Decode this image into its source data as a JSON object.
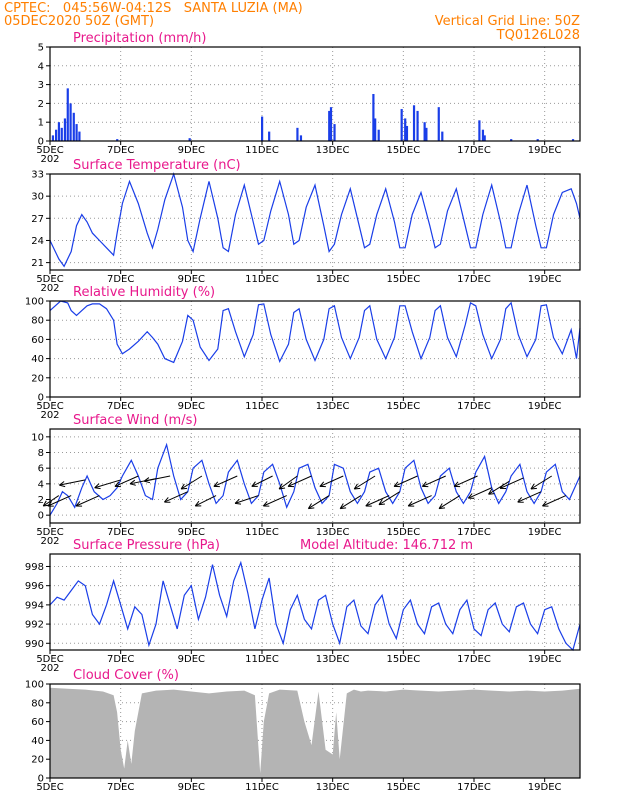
{
  "header": {
    "line1_left": "CPTEC:   045:56W-04:12S   SANTA LUZIA (MA)",
    "line2_left": "05DEC2020 50Z (GMT)",
    "line1_right": "Vertical Grid Line: 50Z",
    "line2_right": "TQ0126L028"
  },
  "colors": {
    "header": "#ff7f00",
    "panel_title": "#e8188c",
    "series": "#1a3ee8",
    "precip_bars": "#1a3ee8",
    "cloud_fill": "#b4b4b4",
    "wind_arrows": "#000000"
  },
  "x_axis": {
    "tick_labels": [
      "5DEC",
      "7DEC",
      "9DEC",
      "11DEC",
      "13DEC",
      "15DEC",
      "17DEC",
      "19DEC"
    ],
    "tick_days": [
      0,
      2,
      4,
      6,
      8,
      10,
      12,
      14
    ],
    "year_label": "202",
    "range_days": [
      0,
      15
    ]
  },
  "chart_data": [
    {
      "type": "bar",
      "title": "Precipitation (mm/h)",
      "ylim": [
        0,
        5
      ],
      "yticks": [
        0,
        1,
        2,
        3,
        4,
        5
      ],
      "grid": true,
      "x_units": "days since 05DEC2020",
      "x": [
        0.08,
        0.17,
        0.25,
        0.33,
        0.42,
        0.5,
        0.58,
        0.67,
        0.75,
        0.83,
        1.9,
        3.95,
        6.0,
        6.2,
        7.0,
        7.1,
        7.9,
        7.95,
        8.05,
        9.15,
        9.2,
        9.3,
        9.95,
        10.05,
        10.1,
        10.3,
        10.4,
        10.6,
        10.65,
        11.0,
        11.1,
        12.15,
        12.25,
        12.3,
        13.05,
        13.8,
        14.8
      ],
      "values": [
        0.3,
        0.6,
        1.0,
        0.7,
        1.2,
        2.8,
        2.0,
        1.5,
        0.9,
        0.5,
        0.1,
        0.15,
        1.3,
        0.5,
        0.7,
        0.3,
        1.6,
        1.8,
        0.9,
        2.5,
        1.2,
        0.6,
        1.7,
        1.2,
        0.8,
        1.9,
        1.6,
        1.0,
        0.7,
        1.8,
        0.5,
        1.1,
        0.6,
        0.3,
        0.1,
        0.1,
        0.1
      ]
    },
    {
      "type": "line",
      "title": "Surface Temperature (nC)",
      "ylim": [
        20,
        33
      ],
      "yticks": [
        21,
        24,
        27,
        30,
        33
      ],
      "grid": true,
      "x_units": "days since 05DEC2020",
      "series": [
        {
          "x": [
            0,
            0.25,
            0.4,
            0.6,
            0.75,
            0.9,
            1.05,
            1.2,
            1.4,
            1.6,
            1.8,
            1.9,
            2.05,
            2.25,
            2.5,
            2.75,
            2.9,
            3.05,
            3.25,
            3.5,
            3.75,
            3.9,
            4.05,
            4.25,
            4.5,
            4.75,
            4.9,
            5.05,
            5.25,
            5.5,
            5.75,
            5.9,
            6.05,
            6.25,
            6.5,
            6.75,
            6.9,
            7.05,
            7.25,
            7.5,
            7.75,
            7.9,
            8.05,
            8.25,
            8.5,
            8.75,
            8.9,
            9.05,
            9.25,
            9.5,
            9.75,
            9.9,
            10.05,
            10.25,
            10.5,
            10.75,
            10.9,
            11.05,
            11.25,
            11.5,
            11.75,
            11.9,
            12.05,
            12.25,
            12.5,
            12.75,
            12.9,
            13.05,
            13.25,
            13.5,
            13.75,
            13.9,
            14.05,
            14.25,
            14.5,
            14.75,
            14.9,
            15.0
          ],
          "values": [
            24,
            21.5,
            20.5,
            22.5,
            26,
            27.5,
            26.5,
            25,
            24,
            23,
            22,
            25,
            29,
            32,
            29,
            25,
            23,
            25.5,
            29.5,
            33,
            28.5,
            24,
            22.5,
            27,
            32,
            27,
            23,
            22.5,
            27.5,
            31.5,
            26.5,
            23.5,
            24,
            28,
            32,
            27.5,
            23.5,
            24,
            28.5,
            31.5,
            26,
            22.5,
            23.5,
            27.5,
            31,
            26,
            23,
            23.5,
            27.5,
            31,
            26.5,
            23,
            23,
            27.5,
            30.5,
            26,
            23,
            23.5,
            28,
            31,
            26,
            23,
            23,
            27.5,
            31.5,
            26.5,
            23,
            23,
            27.5,
            31.5,
            26,
            23,
            23,
            27.5,
            30.5,
            31,
            29,
            27
          ]
        }
      ]
    },
    {
      "type": "line",
      "title": "Relative Humidity (%)",
      "ylim": [
        0,
        100
      ],
      "yticks": [
        0,
        20,
        40,
        60,
        80,
        100
      ],
      "grid": true,
      "x_units": "days since 05DEC2020",
      "series": [
        {
          "x": [
            0,
            0.3,
            0.5,
            0.6,
            0.75,
            0.9,
            1.05,
            1.2,
            1.4,
            1.6,
            1.8,
            1.9,
            2.05,
            2.25,
            2.5,
            2.75,
            2.9,
            3.05,
            3.25,
            3.5,
            3.75,
            3.9,
            4.05,
            4.25,
            4.5,
            4.75,
            4.9,
            5.05,
            5.25,
            5.5,
            5.75,
            5.9,
            6.05,
            6.25,
            6.5,
            6.75,
            6.9,
            7.05,
            7.25,
            7.5,
            7.75,
            7.9,
            8.05,
            8.25,
            8.5,
            8.75,
            8.9,
            9.05,
            9.25,
            9.5,
            9.75,
            9.9,
            10.05,
            10.25,
            10.5,
            10.75,
            10.9,
            11.05,
            11.25,
            11.5,
            11.75,
            11.9,
            12.05,
            12.25,
            12.5,
            12.75,
            12.9,
            13.05,
            13.25,
            13.5,
            13.75,
            13.9,
            14.05,
            14.25,
            14.5,
            14.75,
            14.9,
            15.0
          ],
          "values": [
            90,
            100,
            98,
            90,
            85,
            90,
            95,
            97,
            97,
            92,
            80,
            55,
            45,
            50,
            58,
            68,
            62,
            55,
            40,
            36,
            58,
            85,
            80,
            52,
            38,
            50,
            90,
            92,
            68,
            42,
            65,
            96,
            97,
            65,
            37,
            55,
            88,
            92,
            60,
            38,
            60,
            92,
            95,
            62,
            40,
            62,
            90,
            95,
            60,
            40,
            62,
            95,
            95,
            68,
            40,
            62,
            90,
            95,
            62,
            42,
            75,
            98,
            95,
            65,
            40,
            60,
            92,
            98,
            65,
            42,
            60,
            95,
            96,
            62,
            45,
            70,
            40,
            72
          ]
        }
      ]
    },
    {
      "type": "line",
      "title": "Surface Wind (m/s)",
      "ylim": [
        -1,
        11
      ],
      "yticks": [
        0,
        2,
        4,
        6,
        8,
        10
      ],
      "grid": true,
      "x_units": "days since 05DEC2020",
      "series": [
        {
          "x": [
            0,
            0.2,
            0.35,
            0.5,
            0.7,
            0.9,
            1.05,
            1.25,
            1.5,
            1.7,
            1.9,
            2.05,
            2.3,
            2.5,
            2.7,
            2.9,
            3.05,
            3.3,
            3.5,
            3.7,
            3.9,
            4.05,
            4.3,
            4.5,
            4.7,
            4.9,
            5.05,
            5.3,
            5.5,
            5.7,
            5.9,
            6.05,
            6.3,
            6.5,
            6.7,
            6.9,
            7.05,
            7.3,
            7.5,
            7.7,
            7.9,
            8.05,
            8.3,
            8.5,
            8.7,
            8.9,
            9.05,
            9.3,
            9.5,
            9.7,
            9.9,
            10.05,
            10.3,
            10.5,
            10.7,
            10.9,
            11.05,
            11.3,
            11.5,
            11.7,
            11.9,
            12.05,
            12.3,
            12.5,
            12.7,
            12.9,
            13.05,
            13.3,
            13.5,
            13.7,
            13.9,
            14.05,
            14.3,
            14.5,
            14.7,
            14.9,
            15.0
          ],
          "values": [
            0,
            1.5,
            3,
            2.5,
            1,
            3.5,
            5,
            3,
            2,
            2.5,
            3.5,
            5,
            7,
            5,
            2.5,
            2,
            6,
            9,
            5,
            2,
            3,
            6,
            7,
            4,
            1.5,
            2.5,
            5.5,
            7,
            4,
            1.5,
            2.5,
            5.5,
            6.5,
            4,
            1,
            3,
            6,
            6.5,
            3.5,
            1.5,
            2.5,
            6.5,
            6,
            3,
            1.5,
            3,
            5.5,
            6,
            3,
            1.5,
            3,
            6,
            7,
            3.5,
            1.5,
            2.5,
            5,
            6,
            3,
            1.5,
            3,
            5.5,
            7.5,
            3.5,
            1.5,
            3,
            5,
            6.5,
            3,
            1.5,
            3,
            5.5,
            6.5,
            3,
            2,
            4,
            5
          ]
        }
      ],
      "wind_vectors": {
        "x": [
          0.25,
          0.6,
          1.0,
          1.4,
          2.0,
          2.5,
          3.0,
          3.4,
          3.9,
          4.3,
          4.7,
          5.3,
          5.9,
          6.3,
          6.7,
          7.0,
          7.4,
          7.9,
          8.3,
          8.8,
          9.2,
          9.6,
          9.9,
          10.4,
          10.8,
          11.2,
          11.6,
          12.1,
          12.5,
          13.0,
          13.4,
          13.9,
          14.2,
          14.6
        ],
        "u": [
          -0.6,
          -0.9,
          -1.0,
          -0.9,
          -1.0,
          -0.9,
          -1.0,
          -1.0,
          -0.9,
          -0.8,
          -0.8,
          -0.9,
          -0.9,
          -0.8,
          -0.9,
          -0.7,
          -0.9,
          -0.8,
          -0.9,
          -0.8,
          -0.8,
          -0.9,
          -0.8,
          -0.9,
          -0.9,
          -0.9,
          -0.8,
          -0.9,
          -0.9,
          -0.8,
          -0.9,
          -0.9,
          -0.8,
          -0.9
        ],
        "v": [
          -0.4,
          -0.4,
          -0.2,
          -0.4,
          -0.3,
          -0.4,
          -0.2,
          -0.2,
          -0.4,
          -0.5,
          -0.4,
          -0.4,
          -0.3,
          -0.4,
          -0.4,
          -0.5,
          -0.4,
          -0.5,
          -0.4,
          -0.5,
          -0.5,
          -0.4,
          -0.5,
          -0.4,
          -0.4,
          -0.4,
          -0.5,
          -0.4,
          -0.4,
          -0.5,
          -0.4,
          -0.4,
          -0.5,
          -0.4
        ]
      }
    },
    {
      "type": "line",
      "title": "Surface Pressure (hPa)",
      "annotation": "Model Altitude: 146.712 m",
      "ylim": [
        989.3,
        999.3
      ],
      "yticks": [
        990,
        992,
        994,
        996,
        998
      ],
      "grid": true,
      "x_units": "days since 05DEC2020",
      "series": [
        {
          "x": [
            0,
            0.2,
            0.4,
            0.6,
            0.8,
            1.0,
            1.2,
            1.4,
            1.6,
            1.8,
            2.0,
            2.2,
            2.4,
            2.6,
            2.8,
            3.0,
            3.2,
            3.4,
            3.6,
            3.8,
            4.0,
            4.2,
            4.4,
            4.6,
            4.8,
            5.0,
            5.2,
            5.4,
            5.6,
            5.8,
            6.0,
            6.2,
            6.4,
            6.6,
            6.8,
            7.0,
            7.2,
            7.4,
            7.6,
            7.8,
            8.0,
            8.2,
            8.4,
            8.6,
            8.8,
            9.0,
            9.2,
            9.4,
            9.6,
            9.8,
            10.0,
            10.2,
            10.4,
            10.6,
            10.8,
            11.0,
            11.2,
            11.4,
            11.6,
            11.8,
            12.0,
            12.2,
            12.4,
            12.6,
            12.8,
            13.0,
            13.2,
            13.4,
            13.6,
            13.8,
            14.0,
            14.2,
            14.4,
            14.6,
            14.8,
            15.0
          ],
          "values": [
            994,
            994.8,
            994.5,
            995.5,
            996.5,
            996,
            993,
            992,
            994,
            996.5,
            994,
            991.5,
            993.8,
            993,
            989.8,
            992,
            996.5,
            994,
            991.5,
            995,
            996,
            992.5,
            994.8,
            998.2,
            995,
            992.8,
            996.5,
            998.4,
            995.2,
            991.5,
            994.5,
            996.8,
            992,
            990,
            993.5,
            995,
            992.5,
            991.5,
            994.5,
            995,
            992,
            990,
            993.8,
            994.5,
            991.8,
            991,
            994,
            995,
            992,
            990.5,
            993.5,
            994.5,
            992,
            991,
            993.8,
            994.2,
            992,
            991,
            993.5,
            994.5,
            991.5,
            990.8,
            993.5,
            994.2,
            992,
            991.2,
            993.8,
            994.2,
            992,
            991,
            993.5,
            993.8,
            991.5,
            990,
            989.3,
            992
          ]
        }
      ]
    },
    {
      "type": "area",
      "title": "Cloud Cover (%)",
      "ylim": [
        0,
        100
      ],
      "yticks": [
        0,
        20,
        40,
        60,
        80,
        100
      ],
      "grid": true,
      "x_units": "days since 05DEC2020",
      "series": [
        {
          "x": [
            0,
            0.5,
            1.0,
            1.5,
            1.8,
            1.9,
            2.0,
            2.1,
            2.2,
            2.3,
            2.4,
            2.6,
            3.0,
            3.5,
            4.0,
            4.5,
            5.0,
            5.5,
            5.8,
            5.95,
            6.05,
            6.2,
            6.5,
            7.0,
            7.2,
            7.4,
            7.6,
            7.8,
            8.0,
            8.1,
            8.2,
            8.4,
            8.6,
            8.8,
            9.0,
            9.5,
            10.0,
            10.5,
            11.0,
            11.5,
            12.0,
            12.5,
            13.0,
            13.5,
            14.0,
            14.5,
            15.0
          ],
          "values": [
            96,
            95,
            94,
            92,
            88,
            70,
            30,
            10,
            40,
            15,
            50,
            90,
            93,
            94,
            92,
            90,
            92,
            93,
            88,
            5,
            60,
            90,
            94,
            93,
            60,
            35,
            92,
            30,
            25,
            70,
            20,
            90,
            94,
            92,
            93,
            92,
            94,
            93,
            92,
            93,
            94,
            93,
            92,
            93,
            92,
            93,
            95
          ]
        }
      ]
    }
  ]
}
